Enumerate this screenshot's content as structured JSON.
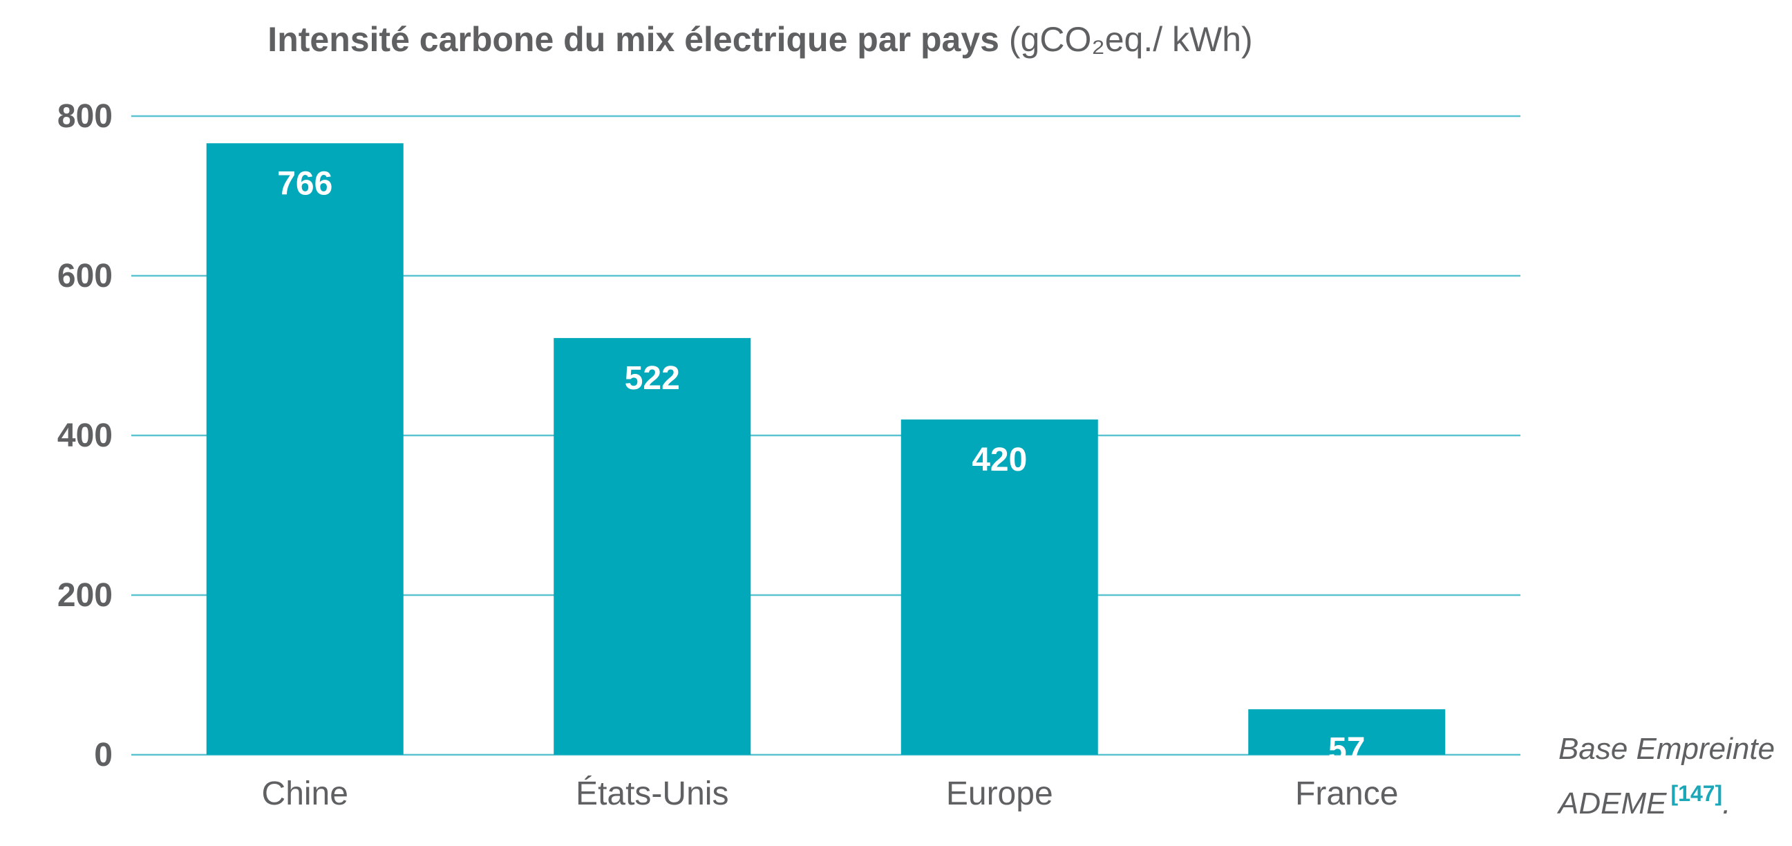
{
  "title": "Intensité carbone du mix électrique par pays",
  "title_unit": "(gCO₂eq./ kWh)",
  "source": {
    "line1": "Base Empreinte",
    "line2": "ADEME",
    "ref": "[147]",
    "trail": "."
  },
  "colors": {
    "bar": "#00a8ba",
    "grid": "#5bc3cf",
    "text": "#5f6062",
    "label": "#ffffff"
  },
  "chart_data": {
    "type": "bar",
    "categories": [
      "Chine",
      "États-Unis",
      "Europe",
      "France"
    ],
    "values": [
      766,
      522,
      420,
      57
    ],
    "title": "Intensité carbone du mix électrique par pays (gCO₂eq./ kWh)",
    "xlabel": "",
    "ylabel": "",
    "ylim": [
      0,
      800
    ],
    "yticks": [
      0,
      200,
      400,
      600,
      800
    ],
    "grid": true,
    "data_labels": true
  }
}
